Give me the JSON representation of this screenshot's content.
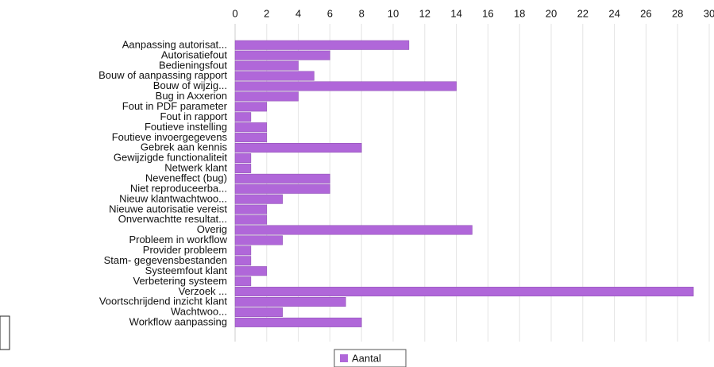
{
  "chart_data": {
    "type": "bar",
    "orientation": "horizontal",
    "categories": [
      "Aanpassing autorisat...",
      "Autorisatiefout",
      "Bedieningsfout",
      "Bouw of aanpassing rapport",
      "Bouw of wijzig...",
      "Bug in Axxerion",
      "Fout in PDF parameter",
      "Fout in rapport",
      "Foutieve instelling",
      "Foutieve invoergegevens",
      "Gebrek aan kennis",
      "Gewijzigde functionaliteit",
      "Netwerk klant",
      "Neveneffect (bug)",
      "Niet reproduceerba...",
      "Nieuw klantwachtwoo...",
      "Nieuwe autorisatie vereist",
      "Onverwachtte resultat...",
      "Overig",
      "Probleem in workflow",
      "Provider probleem",
      "Stam- gegevensbestanden",
      "Systeemfout klant",
      "Verbetering systeem",
      "Verzoek ...",
      "Voortschrijdend inzicht klant",
      "Wachtwoo...",
      "Workflow aanpassing"
    ],
    "series": [
      {
        "name": "Aantal",
        "color": "#b067d9",
        "values": [
          11,
          6,
          4,
          5,
          14,
          4,
          2,
          1,
          2,
          2,
          8,
          1,
          1,
          6,
          6,
          3,
          2,
          2,
          15,
          3,
          1,
          1,
          2,
          1,
          29,
          7,
          3,
          8
        ]
      }
    ],
    "xlim": [
      0,
      30
    ],
    "xticks": [
      0,
      2,
      4,
      6,
      8,
      10,
      12,
      14,
      16,
      18,
      20,
      22,
      24,
      26,
      28,
      30
    ],
    "grid": true,
    "legend": "bottom"
  }
}
